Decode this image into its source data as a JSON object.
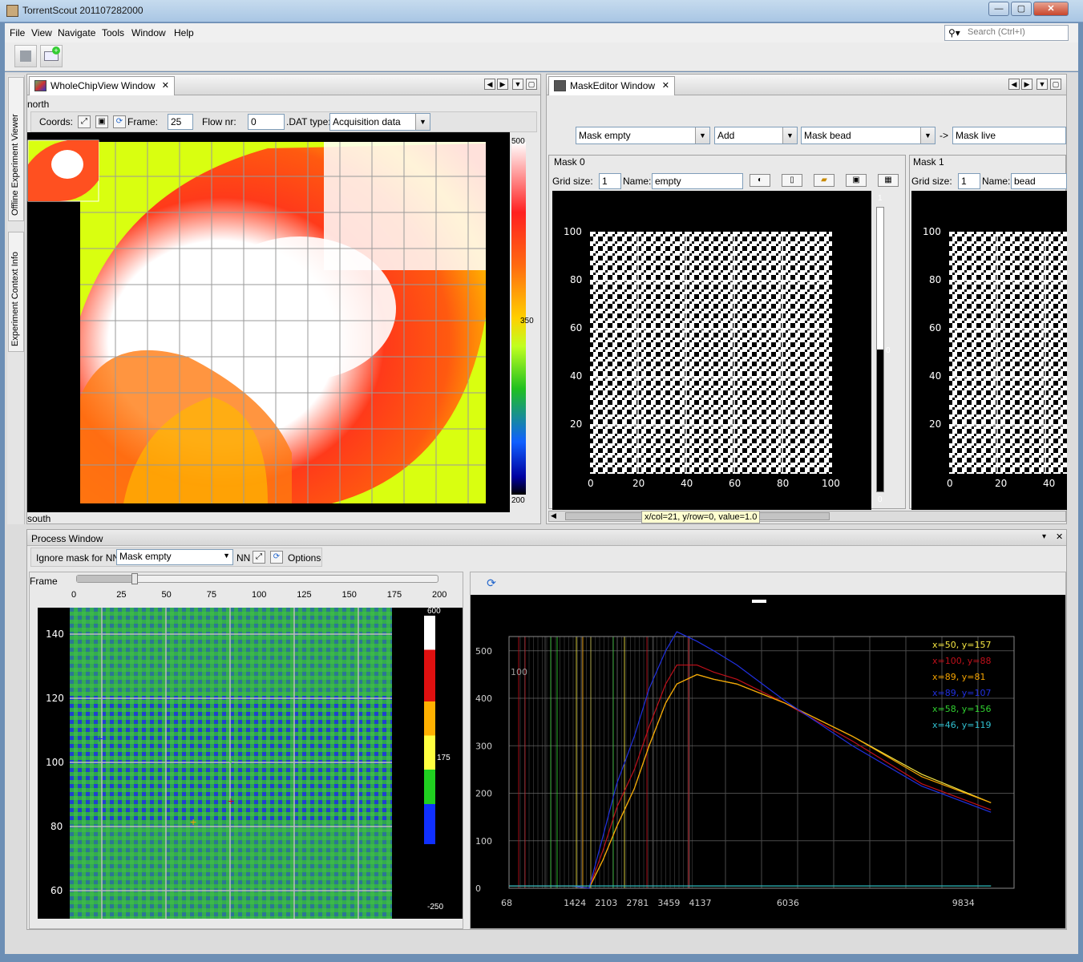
{
  "app": {
    "title": "TorrentScout 201107282000"
  },
  "menu": [
    "File",
    "View",
    "Navigate",
    "Tools",
    "Window",
    "Help"
  ],
  "search": {
    "placeholder": "Search (Ctrl+I)"
  },
  "sidebar": {
    "tabs": [
      "Offline Experiment Viewer",
      "Experiment Context Info"
    ]
  },
  "wholechip": {
    "tab": "WholeChipView Window",
    "north": "north",
    "south": "south",
    "coords_label": "Coords:",
    "frame_label": "Frame:",
    "frame_value": "25",
    "flow_label": "Flow nr:",
    "flow_value": "0",
    "dat_label": ".DAT type:",
    "dat_value": "Acquisition data",
    "scale": {
      "max": "500",
      "mid": "350",
      "min": "200"
    }
  },
  "maskeditor": {
    "tab": "MaskEditor Window",
    "mask_a": "Mask empty",
    "op": "Add",
    "mask_b": "Mask bead",
    "arrow": "->",
    "mask_c": "Mask live",
    "mask0": {
      "title": "Mask 0",
      "grid_label": "Grid size:",
      "grid_value": "1",
      "name_label": "Name:",
      "name_value": "empty"
    },
    "mask1": {
      "title": "Mask 1",
      "grid_label": "Grid size:",
      "grid_value": "1",
      "name_label": "Name:",
      "name_value": "bead"
    },
    "yticks": [
      "100",
      "80",
      "60",
      "40",
      "20"
    ],
    "xticks": [
      "0",
      "20",
      "40",
      "60",
      "80",
      "100"
    ],
    "xticks1": [
      "0",
      "20",
      "40"
    ],
    "scale": {
      "max": "1",
      "mid": "0",
      "min": "0"
    },
    "tooltip": "x/col=21, y/row=0, value=1.0"
  },
  "process": {
    "title": "Process Window",
    "ignore_label": "Ignore mask for NN:",
    "ignore_value": "Mask empty",
    "nn_label": "NN",
    "options_label": "Options",
    "frame_label": "Frame",
    "slider_value": 0.16,
    "slider_ticks": [
      "0",
      "25",
      "50",
      "75",
      "100",
      "125",
      "150",
      "175",
      "200"
    ],
    "heat_yticks": [
      "140",
      "120",
      "100",
      "80",
      "60"
    ],
    "heat_scale": {
      "max": "600",
      "mid": "175",
      "min": "-250"
    }
  },
  "chart_data": {
    "type": "line",
    "title": "",
    "xlabel": "",
    "ylabel": "",
    "ylim": [
      0,
      530
    ],
    "xlim": [
      68,
      11000
    ],
    "xtick_labels": [
      "68",
      "1424",
      "2103",
      "2781",
      "3459",
      "4137",
      "6036",
      "9834"
    ],
    "ytick_labels": [
      "500",
      "400",
      "300",
      "200",
      "100",
      "0"
    ],
    "annotation": "100",
    "series": [
      {
        "name": "x=50, y=157",
        "color": "#f4e542",
        "x": [
          68,
          1424,
          1800,
          2103,
          2400,
          2781,
          3100,
          3459,
          3700,
          4137,
          4500,
          5000,
          6036,
          7500,
          9000,
          10500
        ],
        "y": [
          5,
          5,
          0,
          60,
          130,
          210,
          300,
          390,
          430,
          450,
          440,
          430,
          390,
          320,
          240,
          180
        ]
      },
      {
        "name": "x=100, y=88",
        "color": "#c0101a",
        "x": [
          68,
          1424,
          1800,
          2103,
          2400,
          2781,
          3100,
          3459,
          3700,
          4137,
          4500,
          5000,
          6036,
          7500,
          9000,
          10500
        ],
        "y": [
          5,
          5,
          0,
          80,
          170,
          250,
          340,
          430,
          470,
          470,
          455,
          440,
          390,
          310,
          220,
          165
        ]
      },
      {
        "name": "x=89, y=81",
        "color": "#f4a300",
        "x": [
          68,
          1424,
          1800,
          2103,
          2400,
          2781,
          3100,
          3459,
          3700,
          4137,
          4500,
          5000,
          6036,
          7500,
          9000,
          10500
        ],
        "y": [
          5,
          5,
          0,
          60,
          130,
          210,
          300,
          390,
          430,
          450,
          440,
          430,
          390,
          320,
          235,
          180
        ]
      },
      {
        "name": "x=89, y=107",
        "color": "#2030e0",
        "x": [
          68,
          1424,
          1800,
          2103,
          2400,
          2781,
          3100,
          3459,
          3700,
          4137,
          4500,
          5000,
          6036,
          7500,
          9000,
          10500
        ],
        "y": [
          5,
          5,
          0,
          110,
          220,
          320,
          420,
          500,
          540,
          520,
          500,
          470,
          395,
          300,
          215,
          160
        ]
      },
      {
        "name": "x=58, y=156",
        "color": "#30d030",
        "x": [
          68,
          10500
        ],
        "y": [
          5,
          5
        ]
      },
      {
        "name": "x=46, y=119",
        "color": "#30c0d0",
        "x": [
          68,
          10500
        ],
        "y": [
          5,
          5
        ]
      }
    ]
  }
}
